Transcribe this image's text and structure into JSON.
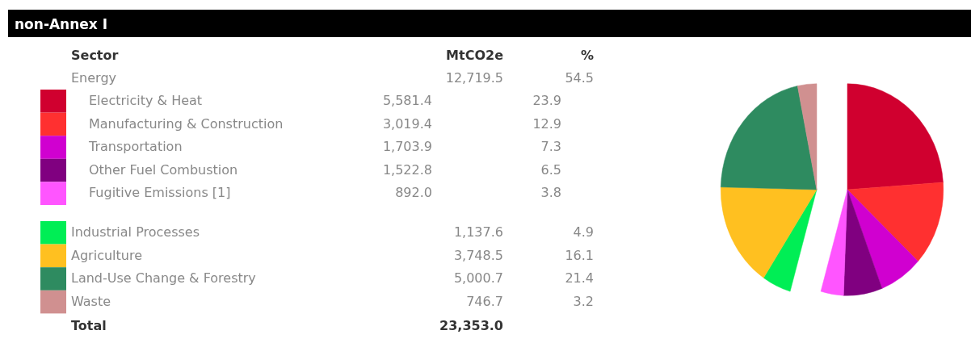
{
  "chart_data": {
    "type": "pie",
    "title": "non-Annex I",
    "legend": "left",
    "categories": [
      "Electricity & Heat",
      "Manufacturing & Construction",
      "Transportation",
      "Other Fuel Combustion",
      "Fugitive Emissions [1]",
      "Industrial Processes",
      "Agriculture",
      "Land-Use Change & Forestry",
      "Waste"
    ],
    "values": [
      5581.4,
      3019.4,
      1703.9,
      1522.8,
      892.0,
      1137.6,
      3748.5,
      5000.7,
      746.7
    ],
    "value_labels": [
      "5,581.4",
      "3,019.4",
      "1,703.9",
      "1,522.8",
      "892.0",
      "1,137.6",
      "3,748.5",
      "5,000.7",
      "746.7"
    ],
    "colors": [
      "#d0002f",
      "#ff3030",
      "#d000d0",
      "#800080",
      "#ff55ff",
      "#00ee55",
      "#ffc020",
      "#2e8b60",
      "#d09090"
    ],
    "annotations": [
      "Sector",
      "MtCO2e",
      "%",
      "Energy",
      "12,719.5",
      "54.5",
      "23.9",
      "12.9",
      "7.3",
      "6.5",
      "3.8",
      "4.9",
      "16.1",
      "21.4",
      "3.2",
      "Total",
      "23,353.0"
    ]
  }
}
